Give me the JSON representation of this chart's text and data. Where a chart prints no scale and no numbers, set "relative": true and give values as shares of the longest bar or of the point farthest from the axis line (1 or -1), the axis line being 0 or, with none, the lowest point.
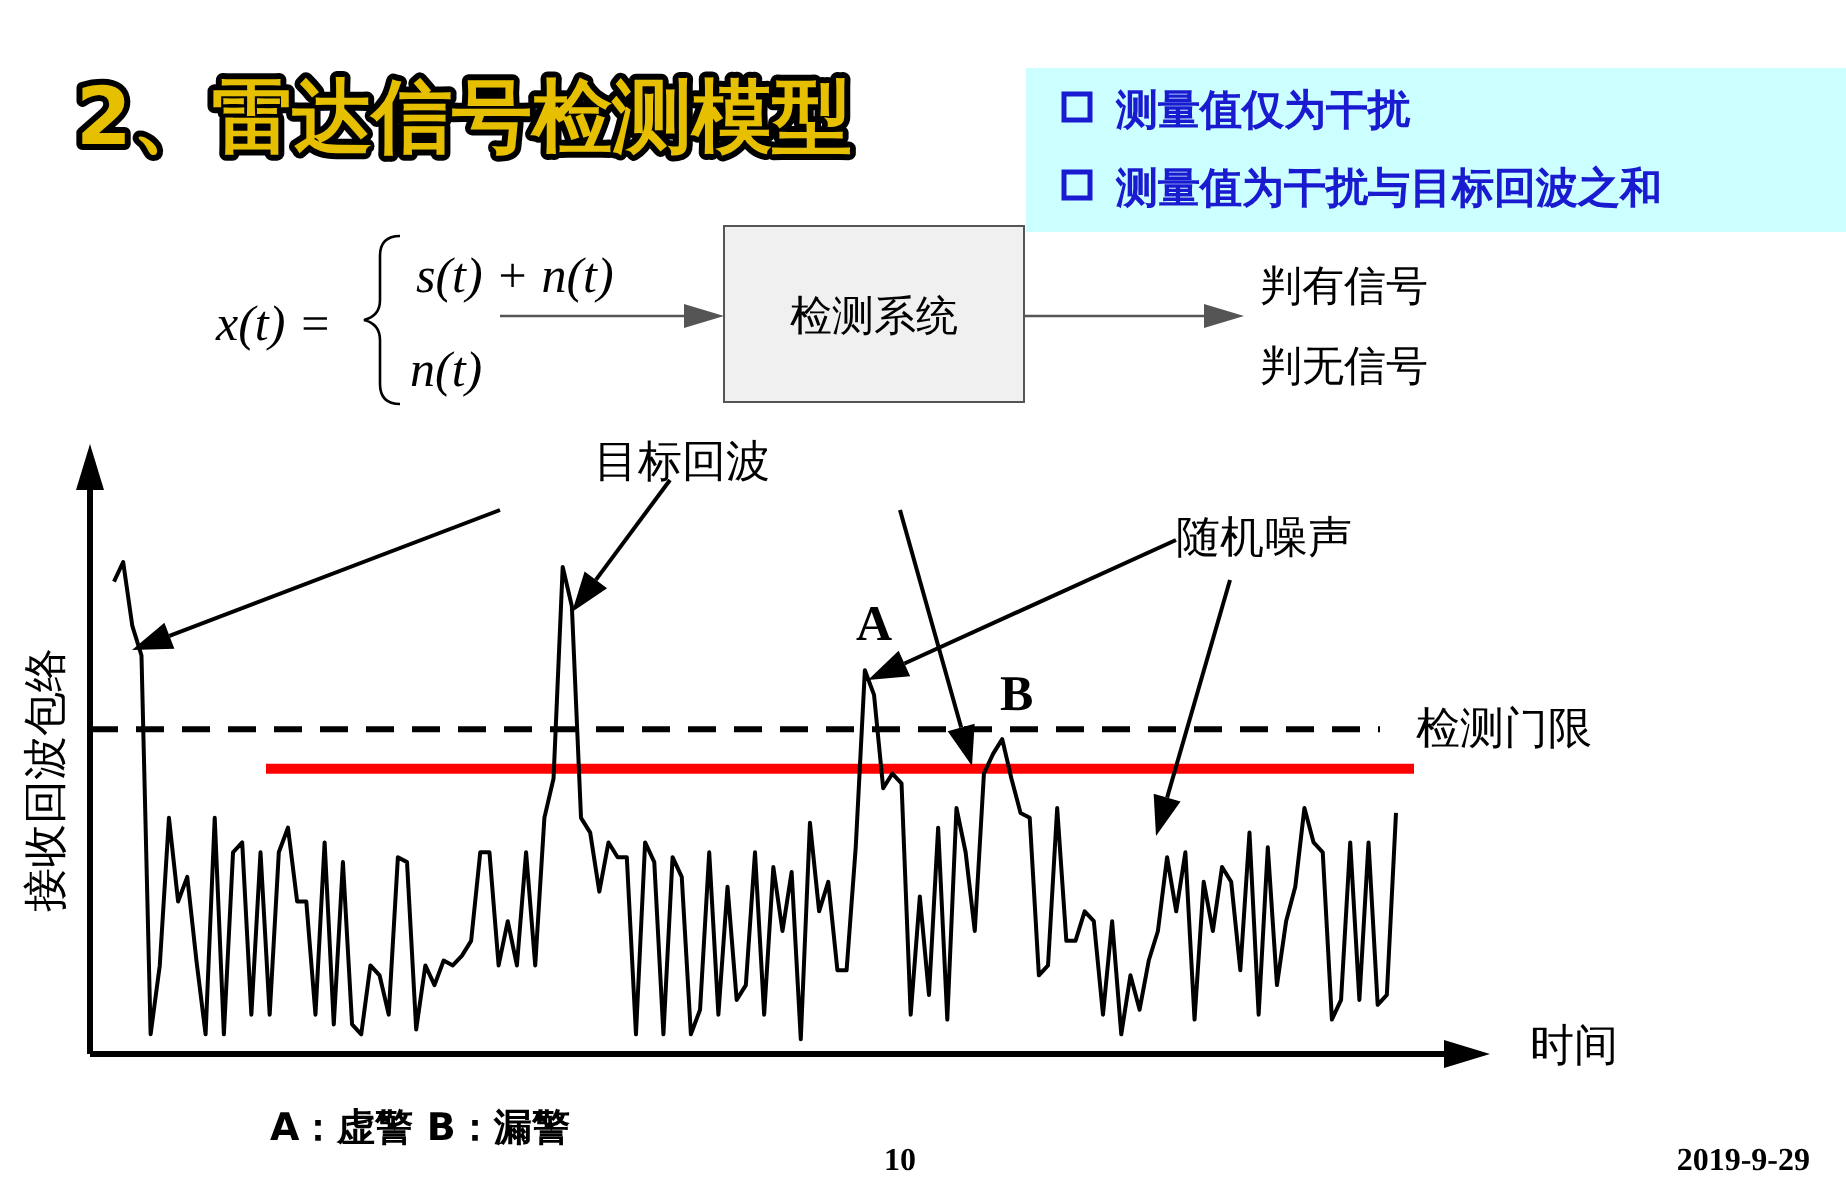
{
  "chart_data": {
    "type": "line",
    "title": "2、雷达信号检测模型",
    "xlabel": "时间",
    "ylabel": "接收回波包络",
    "relative": true,
    "categories": [
      null,
      null,
      null,
      null,
      null,
      null,
      null,
      null,
      null,
      null,
      null,
      null,
      null,
      null,
      null,
      null,
      null,
      null,
      null,
      null,
      null,
      null,
      null,
      null,
      null,
      null,
      null,
      null,
      null,
      null,
      null,
      null,
      null,
      null,
      null,
      null,
      null,
      null,
      null,
      null,
      null,
      null,
      null,
      null,
      null,
      null,
      null,
      null,
      null,
      null,
      null,
      null,
      null,
      null,
      null,
      null,
      null,
      null,
      null,
      null,
      null,
      null,
      null,
      null,
      null,
      null,
      null,
      null,
      null,
      null,
      null,
      null,
      null,
      null,
      null,
      null,
      null,
      null,
      null,
      null,
      null,
      null,
      null,
      null,
      null,
      null,
      null,
      null,
      null,
      null,
      null,
      null,
      null,
      null,
      null,
      null,
      null,
      null,
      null,
      null,
      null,
      null,
      null,
      null,
      null,
      null,
      null,
      null,
      null,
      null,
      null,
      null,
      null,
      null,
      null,
      null,
      null,
      null,
      null,
      null,
      null,
      null,
      null,
      null,
      null,
      null,
      null,
      null,
      null,
      null,
      null,
      null,
      null,
      null,
      null,
      null,
      null,
      null,
      null,
      null,
      null
    ],
    "series": [
      {
        "color": "#000000",
        "values": [
          0.96,
          1.0,
          0.87,
          0.81,
          0.04,
          0.18,
          0.48,
          0.31,
          0.36,
          0.19,
          0.04,
          0.48,
          0.04,
          0.41,
          0.43,
          0.08,
          0.41,
          0.08,
          0.41,
          0.46,
          0.31,
          0.31,
          0.08,
          0.43,
          0.06,
          0.39,
          0.06,
          0.04,
          0.18,
          0.16,
          0.08,
          0.4,
          0.39,
          0.05,
          0.18,
          0.14,
          0.19,
          0.18,
          0.2,
          0.23,
          0.41,
          0.41,
          0.18,
          0.27,
          0.18,
          0.41,
          0.18,
          0.48,
          0.56,
          0.99,
          0.91,
          0.48,
          0.45,
          0.33,
          0.43,
          0.4,
          0.4,
          0.04,
          0.43,
          0.39,
          0.04,
          0.4,
          0.36,
          0.04,
          0.09,
          0.41,
          0.08,
          0.34,
          0.11,
          0.14,
          0.41,
          0.08,
          0.38,
          0.25,
          0.37,
          0.03,
          0.47,
          0.29,
          0.35,
          0.17,
          0.17,
          0.42,
          0.78,
          0.73,
          0.54,
          0.57,
          0.55,
          0.08,
          0.32,
          0.12,
          0.46,
          0.07,
          0.5,
          0.41,
          0.25,
          0.57,
          0.61,
          0.64,
          0.56,
          0.49,
          0.48,
          0.16,
          0.18,
          0.5,
          0.23,
          0.23,
          0.29,
          0.27,
          0.08,
          0.27,
          0.04,
          0.16,
          0.09,
          0.19,
          0.25,
          0.4,
          0.29,
          0.41,
          0.07,
          0.35,
          0.25,
          0.38,
          0.35,
          0.17,
          0.45,
          0.08,
          0.42,
          0.14,
          0.27,
          0.34,
          0.5,
          0.43,
          0.41,
          0.07,
          0.11,
          0.43,
          0.11,
          0.43,
          0.1,
          0.12,
          0.49
        ]
      }
    ],
    "ref_lines": [
      {
        "axis": "y",
        "value": 0.66,
        "label": "检测门限",
        "color": "#000000",
        "line_style": "dashed"
      },
      {
        "axis": "y",
        "value": 0.58,
        "label": null,
        "color": "#ff0000",
        "line_style": "solid"
      }
    ],
    "annotations": [
      "测量值仅为干扰",
      "测量值为干扰与目标回波之和",
      "x(t) =",
      "s(t) + n(t)",
      "n(t)",
      "检测系统",
      "判有信号",
      "判无信号",
      "目标回波",
      "A",
      "B",
      "随机噪声",
      "A：虚警    B：漏警",
      "10",
      "2019-9-29"
    ]
  }
}
